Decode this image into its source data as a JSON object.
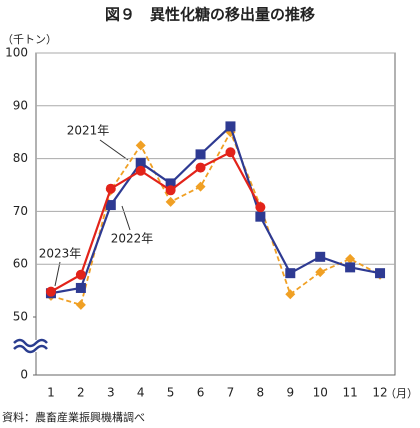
{
  "chart_data": {
    "type": "line",
    "title": "図９　異性化糖の移出量の推移",
    "y_label": "（千トン）",
    "x_label": "（月）",
    "source": "資料：農畜産業振興機構調べ",
    "categories": [
      "1",
      "2",
      "3",
      "4",
      "5",
      "6",
      "7",
      "8",
      "9",
      "10",
      "11",
      "12"
    ],
    "series": [
      {
        "name": "2021年",
        "color": "#2e3a92",
        "marker": "square",
        "dashed": false,
        "values": [
          54.5,
          55.5,
          71.2,
          79.2,
          75.3,
          80.8,
          86.1,
          69.0,
          58.3,
          61.4,
          59.4,
          58.3
        ]
      },
      {
        "name": "2022年",
        "color": "#f0a024",
        "marker": "diamond",
        "dashed": true,
        "values": [
          54.0,
          52.3,
          74.0,
          82.5,
          71.8,
          74.7,
          85.0,
          71.0,
          54.3,
          58.5,
          61.0,
          58.0
        ]
      },
      {
        "name": "2023年",
        "color": "#e2231a",
        "marker": "circle",
        "dashed": false,
        "values": [
          54.8,
          58.0,
          74.3,
          77.7,
          74.0,
          78.3,
          81.2,
          70.8,
          null,
          null,
          null,
          null
        ]
      }
    ],
    "ylim": [
      50,
      100
    ],
    "yticks": [
      0,
      50,
      60,
      70,
      80,
      90,
      100
    ],
    "axis_break": true,
    "grid": true
  }
}
